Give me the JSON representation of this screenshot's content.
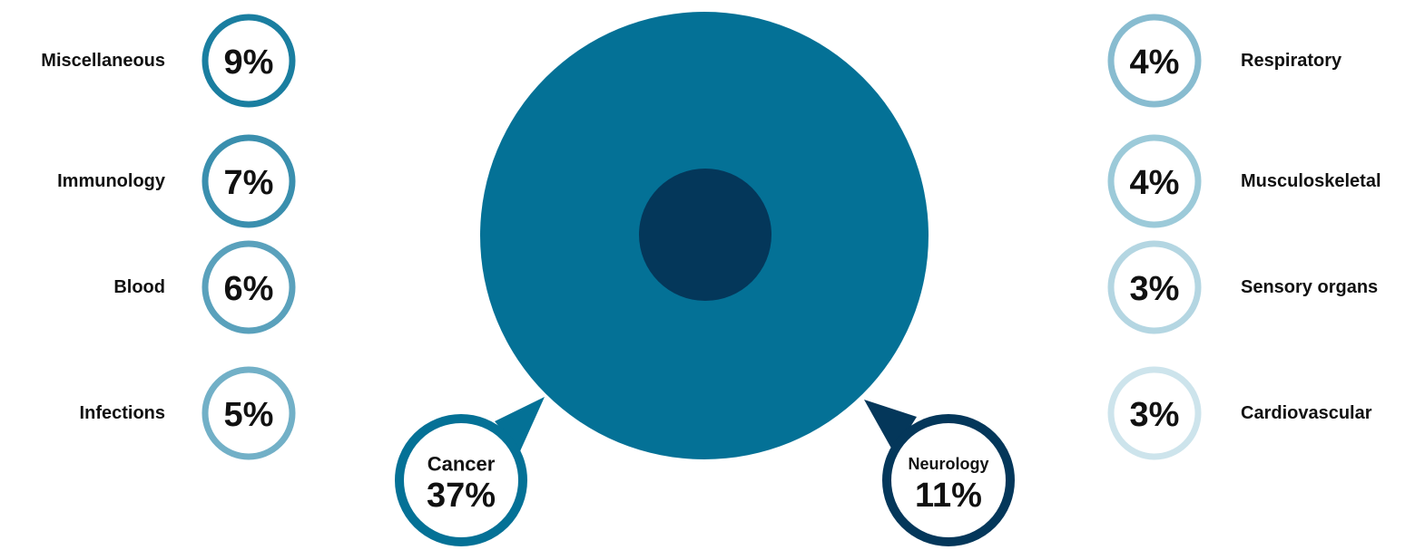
{
  "chart_data": {
    "type": "pie",
    "title": "",
    "categories": [
      "Cancer",
      "Neurology",
      "Miscellaneous",
      "Immunology",
      "Blood",
      "Infections",
      "Respiratory",
      "Musculoskeletal",
      "Sensory organs",
      "Cardiovascular"
    ],
    "values": [
      37,
      11,
      9,
      7,
      6,
      5,
      4,
      4,
      3,
      3
    ],
    "unit": "%",
    "value_labels": [
      "37%",
      "11%",
      "9%",
      "7%",
      "6%",
      "5%",
      "4%",
      "4%",
      "3%",
      "3%"
    ],
    "colors": {
      "Cancer": "#047196",
      "Neurology": "#04375a",
      "Miscellaneous": "#1a7ea0",
      "Immunology": "#3a8fae",
      "Blood": "#5aa1bc",
      "Infections": "#72b0c7",
      "Respiratory": "#88bcd0",
      "Musculoskeletal": "#9ccad9",
      "Sensory organs": "#b4d6e2",
      "Cardiovascular": "#cde4ec"
    },
    "legend": "left-and-right"
  }
}
